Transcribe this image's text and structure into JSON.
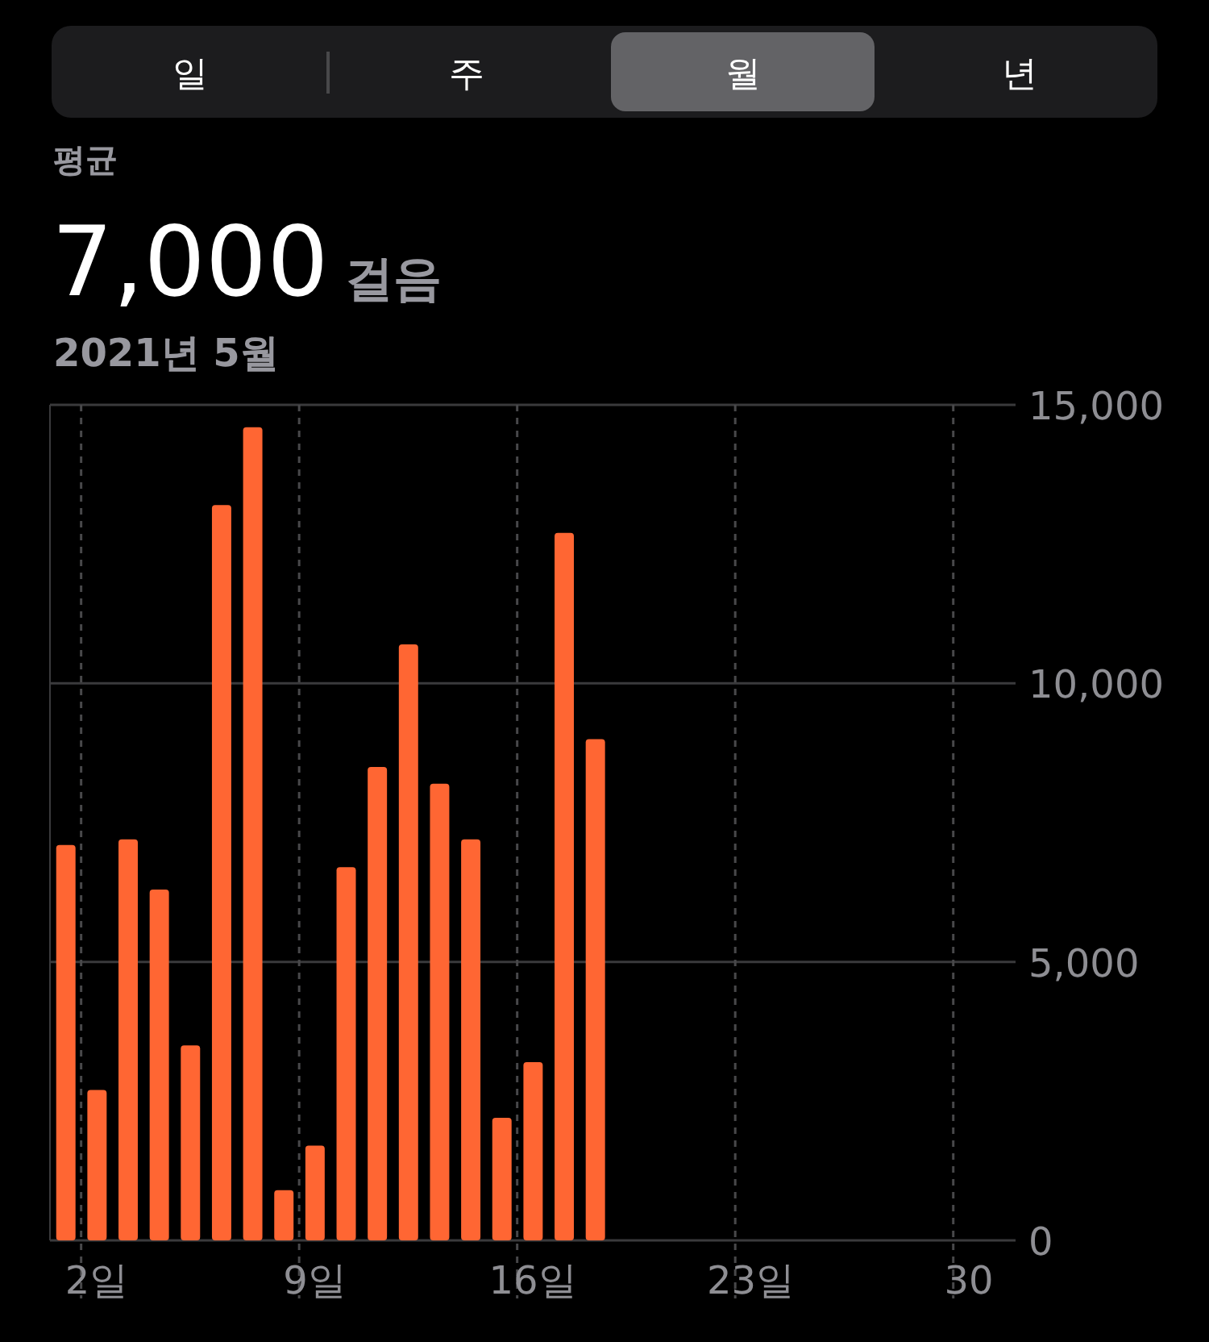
{
  "chart_data": {
    "type": "bar",
    "title": "7,000 걸음",
    "subtitle": "2021년 5월",
    "annotations": [
      "일",
      "주",
      "월",
      "년",
      "평균"
    ],
    "categories": [
      null,
      "2일",
      null,
      null,
      null,
      null,
      null,
      null,
      "9일",
      null,
      null,
      null,
      null,
      null,
      null,
      "16일",
      null,
      null,
      null,
      null,
      null,
      null,
      "23일",
      null,
      null,
      null,
      null,
      null,
      null,
      "30",
      null
    ],
    "values": [
      7100,
      2700,
      7200,
      6300,
      3500,
      13200,
      14600,
      900,
      1700,
      6700,
      8500,
      10700,
      8200,
      7200,
      2200,
      3200,
      12700,
      9000,
      null,
      null,
      null,
      null,
      null,
      null,
      null,
      null,
      null,
      null,
      null,
      null,
      null
    ],
    "color": "#ff6633",
    "ylim": [
      0,
      15000
    ],
    "yticks": [
      0,
      {
        "value": 5000,
        "label": "5,000"
      },
      {
        "value": 10000,
        "label": "10,000"
      },
      {
        "value": 15000,
        "label": "15,000"
      }
    ],
    "grid": true
  }
}
